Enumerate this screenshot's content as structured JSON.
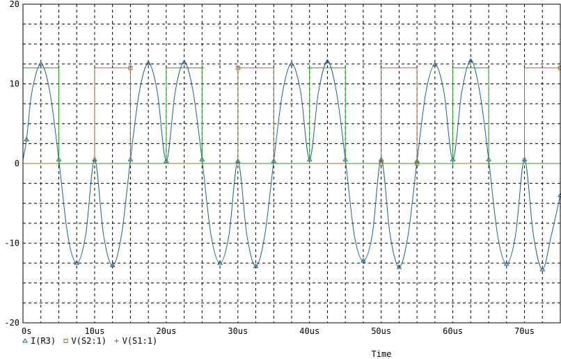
{
  "chart_data": {
    "type": "line",
    "title": "",
    "xlabel": "Time",
    "ylabel": "",
    "xlim": [
      0,
      75
    ],
    "ylim": [
      -20,
      20
    ],
    "x_unit": "us",
    "x_ticks": [
      0,
      10,
      20,
      30,
      40,
      50,
      60,
      70
    ],
    "x_tick_labels": [
      "0s",
      "10us",
      "20us",
      "30us",
      "40us",
      "50us",
      "60us",
      "70us"
    ],
    "y_ticks": [
      -20,
      -10,
      0,
      10,
      20
    ],
    "y_tick_labels": [
      "-20",
      "-10",
      "0",
      "10",
      "20"
    ],
    "grid": true,
    "legend_position": "bottom-left",
    "series": [
      {
        "name": "I(R3)",
        "marker": "triangle",
        "color": "#1f5f8b",
        "x": [
          0,
          0.5,
          1.25,
          2.5,
          3.75,
          5,
          6.25,
          7.5,
          8.75,
          10,
          11.25,
          12.5,
          13.75,
          15,
          16.25,
          17.5,
          18.75,
          20,
          21.25,
          22.5,
          23.75,
          25,
          26.25,
          27.5,
          28.75,
          30,
          31.25,
          32.5,
          33.75,
          35,
          36.25,
          37.5,
          38.75,
          40,
          41.25,
          42.5,
          43.75,
          45,
          46.25,
          47.5,
          48.75,
          50,
          51.25,
          52.5,
          53.75,
          55,
          56.25,
          57.5,
          58.75,
          60,
          61.25,
          62.5,
          63.75,
          65,
          66.25,
          67.5,
          68.75,
          70,
          71.25,
          72.5,
          73.75,
          75
        ],
        "y": [
          0.5,
          3.0,
          9.0,
          12.5,
          9.0,
          0.5,
          -9.0,
          -12.5,
          -9.0,
          0.5,
          -9.0,
          -12.8,
          -9.0,
          0.5,
          9.0,
          12.6,
          9.0,
          0.3,
          9.0,
          12.7,
          9.0,
          0.5,
          -9.0,
          -12.5,
          -9.0,
          0.3,
          -9.0,
          -12.9,
          -9.0,
          0.3,
          9.0,
          12.5,
          9.0,
          0.5,
          9.0,
          12.8,
          9.0,
          0.5,
          -9.0,
          -12.2,
          -9.0,
          0.5,
          -9.0,
          -13.0,
          -9.0,
          0.3,
          9.0,
          12.4,
          9.0,
          0.5,
          9.0,
          12.9,
          9.0,
          0.5,
          -9.0,
          -12.6,
          -9.0,
          0.5,
          -9.0,
          -13.3,
          -9.0,
          -4.0
        ]
      },
      {
        "name": "V(S2:1)",
        "marker": "square",
        "color": "#b0651a",
        "x": [
          0,
          10,
          10,
          15,
          15,
          30,
          30,
          35,
          35,
          50,
          50,
          55,
          55,
          70,
          70,
          75
        ],
        "y": [
          0,
          0,
          12,
          12,
          0,
          0,
          12,
          12,
          0,
          0,
          12,
          12,
          0,
          0,
          12,
          12
        ]
      },
      {
        "name": "V(S1:1)",
        "marker": "plus",
        "color": "#2a9a2a",
        "x": [
          0,
          0,
          5,
          5,
          20,
          20,
          25,
          25,
          40,
          40,
          45,
          45,
          60,
          60,
          65,
          65,
          75
        ],
        "y": [
          0,
          12,
          12,
          0,
          0,
          12,
          12,
          0,
          0,
          12,
          12,
          0,
          0,
          12,
          12,
          0,
          0
        ]
      }
    ]
  }
}
